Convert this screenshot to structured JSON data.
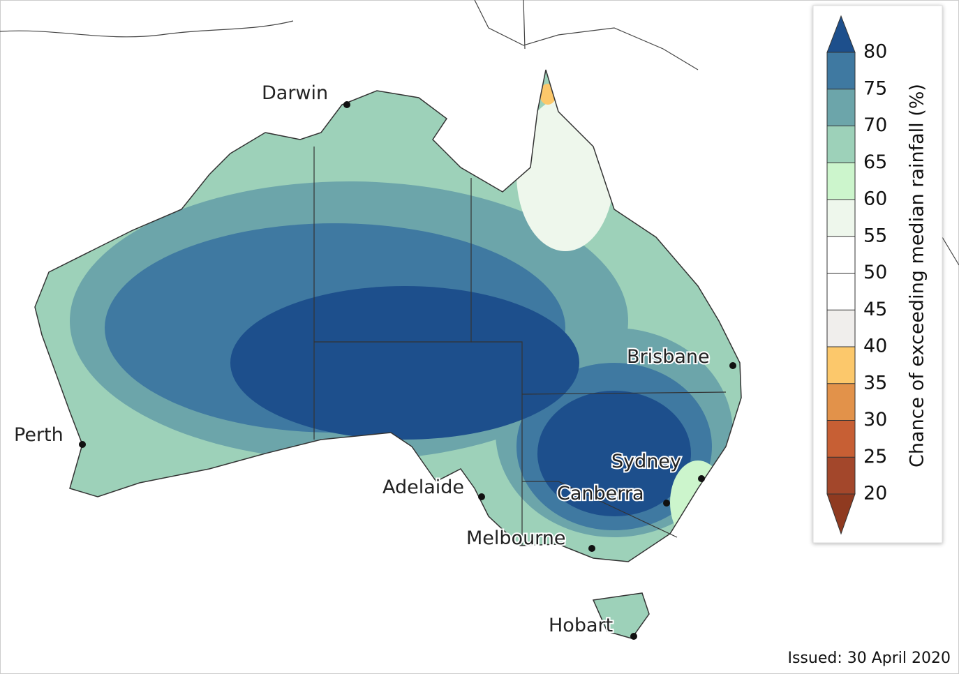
{
  "cities": [
    "Darwin",
    "Perth",
    "Adelaide",
    "Melbourne",
    "Brisbane",
    "Sydney",
    "Canberra",
    "Hobart"
  ],
  "colorbar": {
    "label": "Chance of exceeding median rainfall (%)",
    "ticks": [
      20,
      25,
      30,
      35,
      40,
      45,
      50,
      55,
      60,
      65,
      70,
      75,
      80
    ],
    "band_colors": [
      "#a3472b",
      "#c75f34",
      "#e2924a",
      "#fcc86b",
      "#f0eeec",
      "#ffffff",
      "#ffffff",
      "#eef7ec",
      "#ccf5cc",
      "#9dd1b9",
      "#6ca5aa",
      "#3f79a1"
    ],
    "over_color": "#1d4f8c",
    "under_color": "#8f3a20"
  },
  "issued": "Issued: 30 April 2020"
}
